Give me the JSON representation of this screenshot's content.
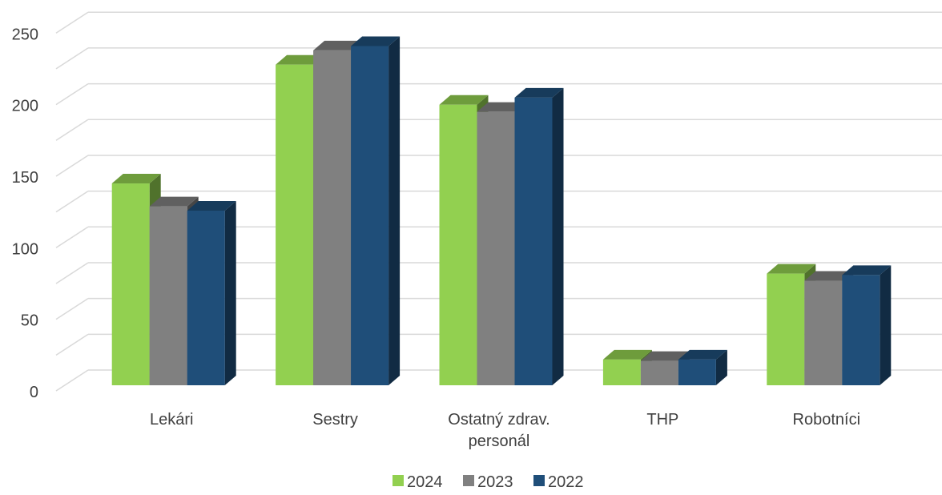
{
  "chart_data": {
    "type": "bar",
    "categories": [
      "Lekári",
      "Sestry",
      "Ostatný zdrav. personál",
      "THP",
      "Robotníci"
    ],
    "category_label_lines": [
      [
        "Lekári"
      ],
      [
        "Sestry"
      ],
      [
        "Ostatný zdrav.",
        "personál"
      ],
      [
        "THP"
      ],
      [
        "Robotníci"
      ]
    ],
    "series": [
      {
        "name": "2024",
        "color": "#92D050",
        "values": [
          141,
          224,
          196,
          18,
          78
        ]
      },
      {
        "name": "2023",
        "color": "#808080",
        "values": [
          125,
          234,
          191,
          17,
          73
        ]
      },
      {
        "name": "2022",
        "color": "#1F4E79",
        "values": [
          122,
          237,
          201,
          18,
          77
        ]
      }
    ],
    "ylim": [
      0,
      250
    ],
    "yticks": [
      "0",
      "50",
      "100",
      "150",
      "200",
      "250"
    ],
    "grid": true,
    "legend_position": "bottom",
    "style": "3d-clustered-column",
    "title": "",
    "xlabel": "",
    "ylabel": ""
  }
}
